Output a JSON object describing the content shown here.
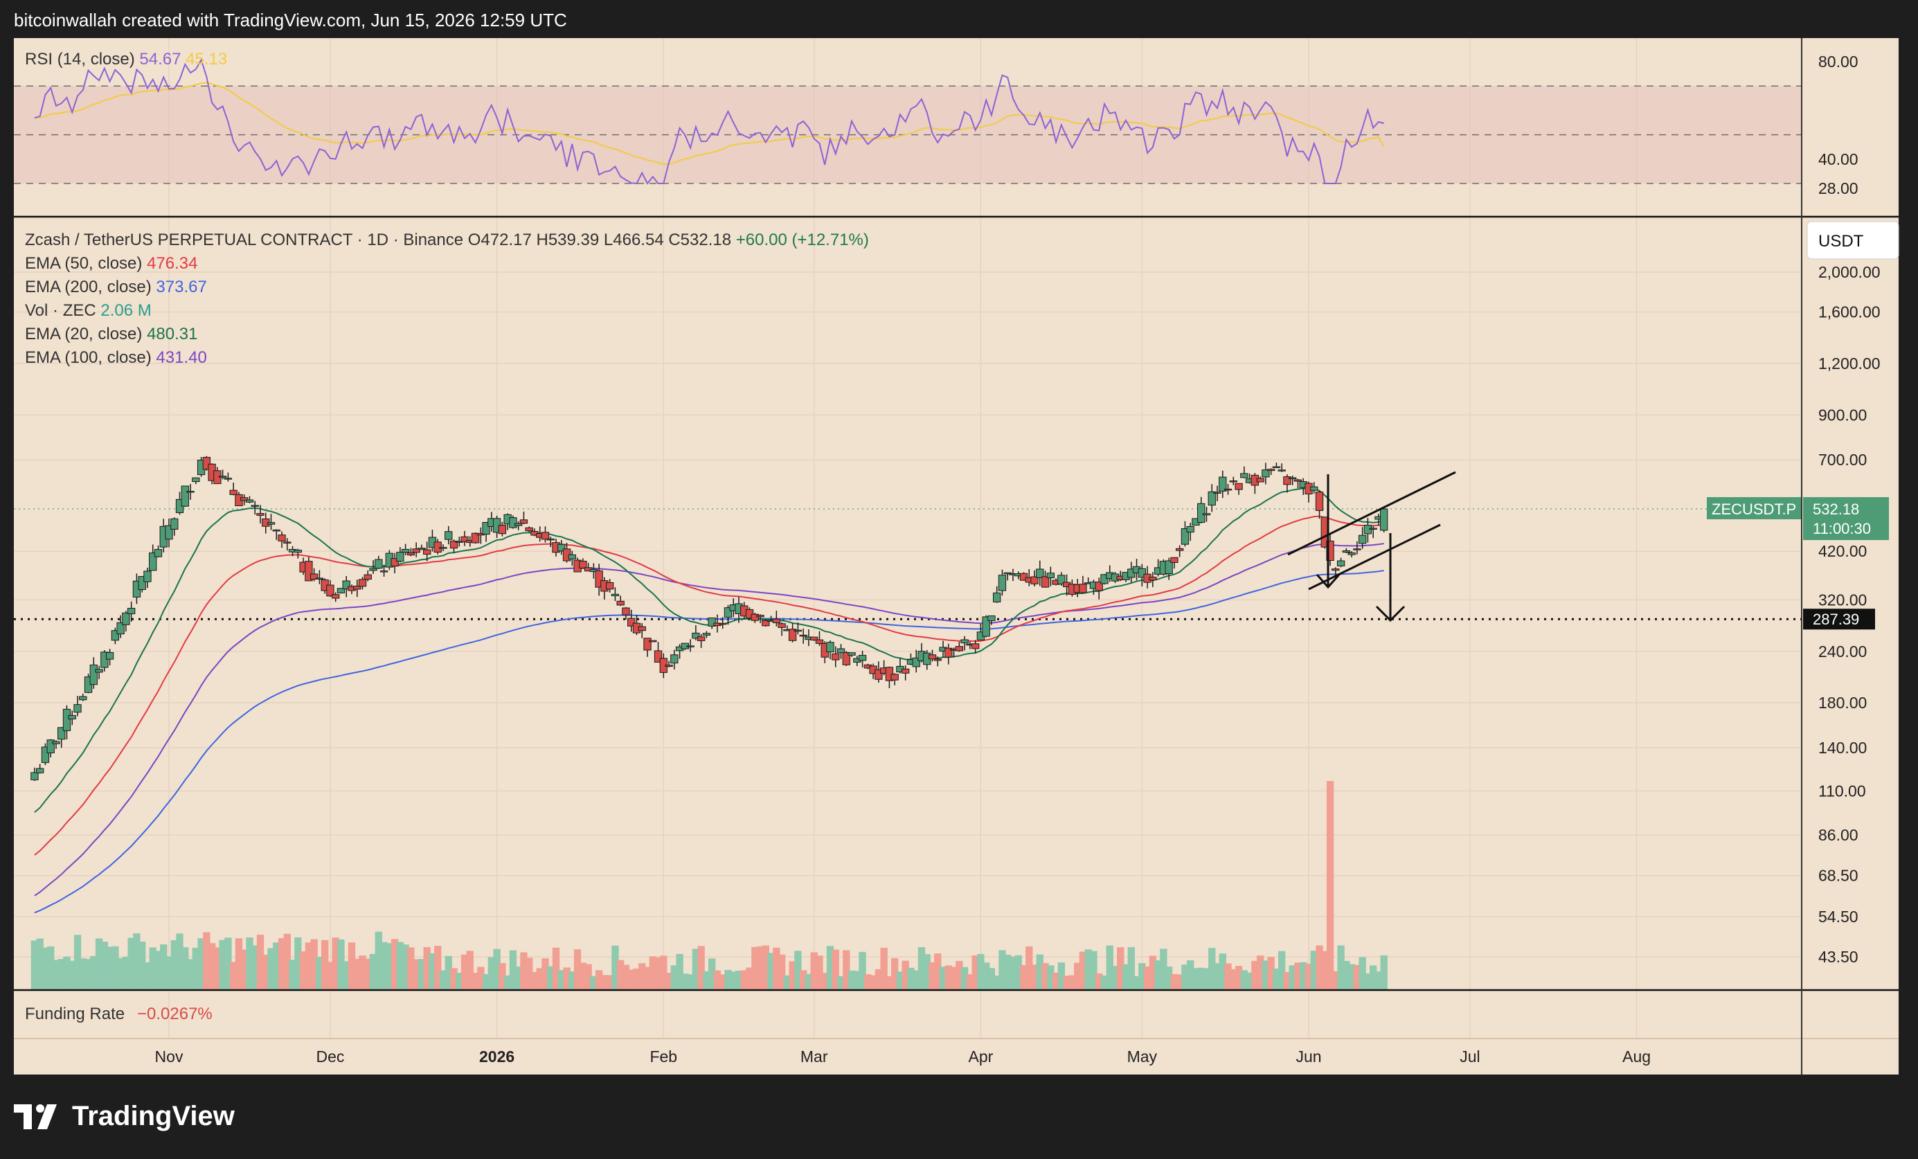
{
  "header": {
    "attribution": "bitcoinwallah created with TradingView.com, Jun 15, 2026 12:59 UTC"
  },
  "footer": {
    "brand": "TradingView",
    "logo_icon": "tradingview-logo-icon"
  },
  "colors": {
    "background": "#f1e1cf",
    "up": "#4e9c76",
    "down": "#d64c47",
    "ema50": "#e23b44",
    "ema200": "#3f64e0",
    "ema20": "#19744e",
    "ema100": "#7a46c4",
    "rsi": "#8c63d6",
    "rsi_ma": "#f2cb46",
    "volume_up": "#8fc9ae",
    "volume_down": "#f19f93"
  },
  "rsi_panel": {
    "title": "RSI (14, close)",
    "value": "54.67",
    "ma_value": "45.13",
    "ticks": [
      "80.00",
      "40.00",
      "28.00"
    ]
  },
  "main_panel": {
    "symbol": "Zcash / TetherUS PERPETUAL CONTRACT · 1D · Binance",
    "ohlc": {
      "open": "O472.17",
      "high": "H539.39",
      "low": "L466.54",
      "close": "C532.18",
      "change": "+60.00 (+12.71%)"
    },
    "indicators": [
      {
        "label": "EMA (50, close)",
        "value": "476.34"
      },
      {
        "label": "EMA (200, close)",
        "value": "373.67"
      },
      {
        "label": "Vol · ZEC",
        "value": "2.06 M"
      },
      {
        "label": "EMA (20, close)",
        "value": "480.31"
      },
      {
        "label": "EMA (100, close)",
        "value": "431.40"
      }
    ],
    "currency_button": "USDT",
    "price_ticks": [
      "2,000.00",
      "1,600.00",
      "1,200.00",
      "900.00",
      "700.00",
      "420.00",
      "320.00",
      "240.00",
      "180.00",
      "140.00",
      "110.00",
      "86.00",
      "68.50",
      "54.50",
      "43.50"
    ],
    "symbol_badge": "ZECUSDT.P",
    "last_price": "532.18",
    "countdown": "11:00:30",
    "level_label": "287.39"
  },
  "funding_panel": {
    "title": "Funding Rate",
    "value": "−0.0267%"
  },
  "time_axis": [
    "Nov",
    "Dec",
    "2026",
    "Feb",
    "Mar",
    "Apr",
    "May",
    "Jun",
    "Jul",
    "Aug"
  ],
  "chart_data": {
    "type": "candlestick",
    "title": "Zcash / TetherUS PERPETUAL CONTRACT · 1D · Binance",
    "y_scale": "log",
    "ylim": [
      38,
      2400
    ],
    "x_range": [
      "2025-10-07",
      "2026-08-31"
    ],
    "level_line": 287.39,
    "key_points": [
      {
        "date": "2025-10-07",
        "close": 122
      },
      {
        "date": "2025-10-20",
        "close": 235
      },
      {
        "date": "2025-11-07",
        "close": 700
      },
      {
        "date": "2025-11-17",
        "close": 520
      },
      {
        "date": "2025-12-01",
        "close": 330
      },
      {
        "date": "2025-12-15",
        "close": 415
      },
      {
        "date": "2026-01-05",
        "close": 500
      },
      {
        "date": "2026-01-20",
        "close": 360
      },
      {
        "date": "2026-02-01",
        "close": 225
      },
      {
        "date": "2026-02-15",
        "close": 310
      },
      {
        "date": "2026-03-01",
        "close": 250
      },
      {
        "date": "2026-03-15",
        "close": 212
      },
      {
        "date": "2026-03-25",
        "close": 240
      },
      {
        "date": "2026-04-01",
        "close": 255
      },
      {
        "date": "2026-04-05",
        "close": 375
      },
      {
        "date": "2026-04-20",
        "close": 345
      },
      {
        "date": "2026-05-05",
        "close": 380
      },
      {
        "date": "2026-05-15",
        "close": 600
      },
      {
        "date": "2026-05-25",
        "close": 655
      },
      {
        "date": "2026-06-02",
        "close": 585
      },
      {
        "date": "2026-06-05",
        "close": 385
      },
      {
        "date": "2026-06-12",
        "close": 472
      },
      {
        "date": "2026-06-15",
        "close": 532.18
      }
    ],
    "last_candle": {
      "date": "2026-06-15",
      "open": 472.17,
      "high": 539.39,
      "low": 466.54,
      "close": 532.18
    },
    "ema_last": {
      "ema20": 480.31,
      "ema50": 476.34,
      "ema100": 431.4,
      "ema200": 373.67
    },
    "volume_last": "2.06 M",
    "rsi_last": 54.67,
    "rsi_ma_last": 45.13,
    "rsi_levels": [
      70,
      50,
      30
    ],
    "funding_rate": "−0.0267%"
  }
}
